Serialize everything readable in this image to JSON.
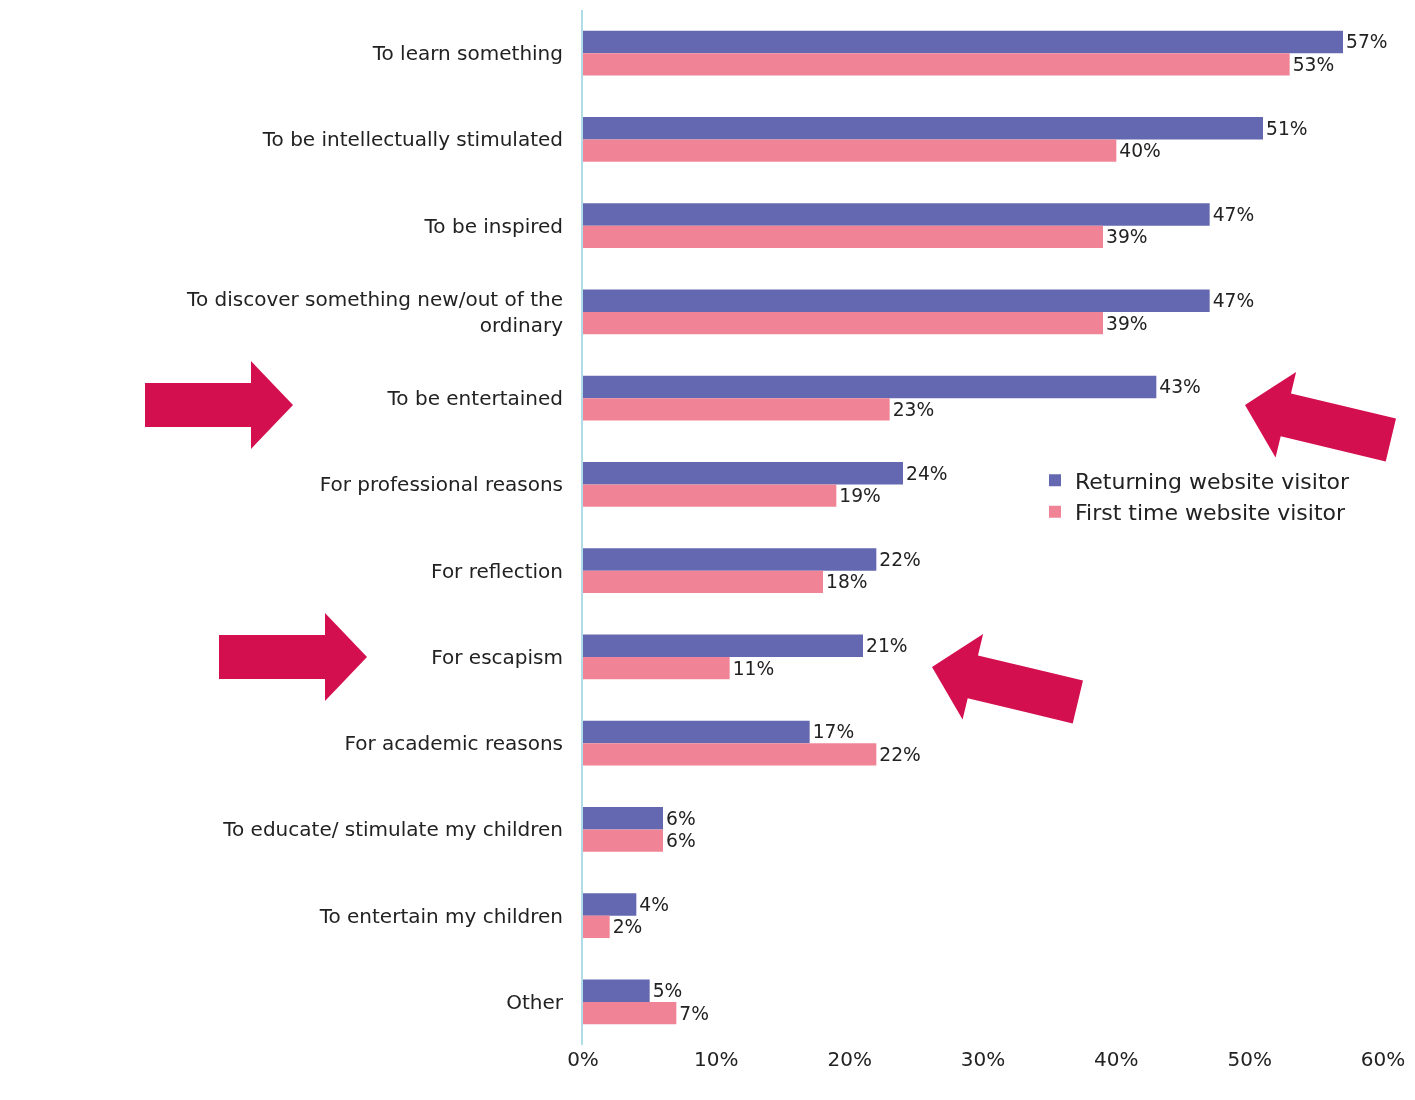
{
  "chart_data": {
    "type": "bar",
    "orientation": "horizontal",
    "categories": [
      "To learn something",
      "To be intellectually stimulated",
      "To be inspired",
      "To discover something new/out of the ordinary",
      "To be entertained",
      "For professional reasons",
      "For reflection",
      "For escapism",
      "For academic reasons",
      "To educate/ stimulate my children",
      "To entertain my children",
      "Other"
    ],
    "series": [
      {
        "name": "Returning website visitor",
        "color": "#6468b0",
        "values": [
          57,
          51,
          47,
          47,
          43,
          24,
          22,
          21,
          17,
          6,
          4,
          5
        ],
        "value_labels": [
          "57%",
          "51%",
          "47%",
          "47%",
          "43%",
          "24%",
          "22%",
          "21%",
          "17%",
          "6%",
          "4%",
          "5%"
        ]
      },
      {
        "name": "First time website visitor",
        "color": "#f08496",
        "values": [
          53,
          40,
          39,
          39,
          23,
          19,
          18,
          11,
          22,
          6,
          2,
          7
        ],
        "value_labels": [
          "53%",
          "40%",
          "39%",
          "39%",
          "23%",
          "19%",
          "18%",
          "11%",
          "22%",
          "6%",
          "2%",
          "7%"
        ]
      }
    ],
    "xlim": [
      0,
      60
    ],
    "xticks": [
      {
        "value": 0,
        "label": "0%"
      },
      {
        "value": 10,
        "label": "10%"
      },
      {
        "value": 20,
        "label": "20%"
      },
      {
        "value": 30,
        "label": "30%"
      },
      {
        "value": 40,
        "label": "40%"
      },
      {
        "value": 50,
        "label": "50%"
      },
      {
        "value": 60,
        "label": "60%"
      }
    ],
    "grid": false,
    "legend": "right"
  }
}
